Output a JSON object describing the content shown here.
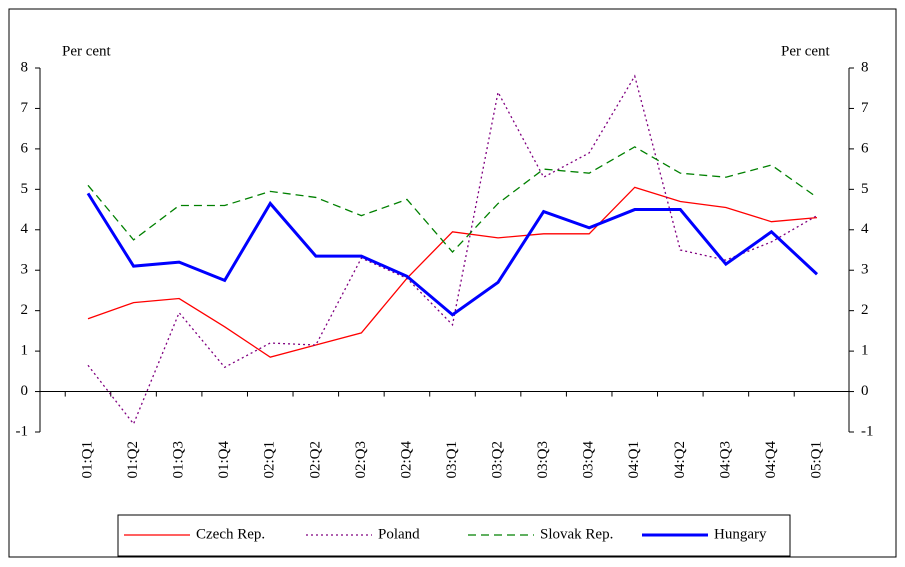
{
  "chart_data": {
    "type": "line",
    "y_label": "Per cent",
    "y2_label": "Per cent",
    "categories": [
      "01:Q1",
      "01:Q2",
      "01:Q3",
      "01:Q4",
      "02:Q1",
      "02:Q2",
      "02:Q3",
      "02:Q4",
      "03:Q1",
      "03:Q2",
      "03:Q3",
      "03:Q4",
      "04:Q1",
      "04:Q2",
      "04:Q3",
      "04:Q4",
      "05:Q1"
    ],
    "series": [
      {
        "name": "Czech Rep.",
        "color": "#ff0000",
        "dash": "solid",
        "values": [
          1.8,
          2.2,
          2.3,
          1.6,
          0.85,
          1.15,
          1.45,
          2.8,
          3.95,
          3.8,
          3.9,
          3.9,
          5.05,
          4.7,
          4.55,
          4.2,
          4.3
        ]
      },
      {
        "name": "Poland",
        "color": "#800080",
        "dash": "dotted",
        "values": [
          0.65,
          -0.8,
          1.95,
          0.6,
          1.2,
          1.15,
          3.3,
          2.8,
          1.65,
          7.4,
          5.3,
          5.9,
          7.8,
          3.5,
          3.25,
          3.7,
          4.35
        ]
      },
      {
        "name": "Slovak Rep.",
        "color": "#008000",
        "dash": "dashed",
        "values": [
          5.1,
          3.75,
          4.6,
          4.6,
          4.95,
          4.8,
          4.35,
          4.75,
          3.45,
          4.65,
          5.5,
          5.4,
          6.05,
          5.4,
          5.3,
          5.6,
          4.8
        ]
      },
      {
        "name": "Hungary",
        "color": "#0000ff",
        "dash": "thick",
        "values": [
          4.9,
          3.1,
          3.2,
          2.75,
          4.65,
          3.35,
          3.35,
          2.85,
          1.9,
          2.7,
          4.45,
          4.05,
          4.5,
          4.5,
          3.15,
          3.95,
          2.9
        ]
      }
    ],
    "ylim": [
      -1,
      8
    ],
    "yticks": [
      -1,
      0,
      1,
      2,
      3,
      4,
      5,
      6,
      7,
      8
    ],
    "y2lim": [
      -1,
      8
    ],
    "y2ticks": [
      -1,
      0,
      1,
      2,
      3,
      4,
      5,
      6,
      7,
      8
    ],
    "legend": "bottom"
  }
}
